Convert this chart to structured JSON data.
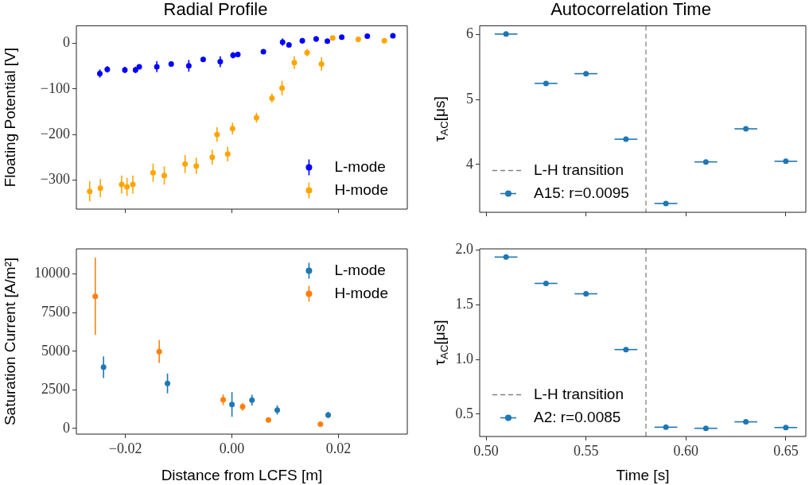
{
  "chart_data": [
    {
      "type": "scatter",
      "title": "Radial Profile",
      "ylabel": "Floating Potential [V]",
      "xlim": [
        -0.0292,
        0.0329
      ],
      "ylim": [
        -364,
        39
      ],
      "xticks": [
        -0.02,
        0,
        0.02
      ],
      "yticks": [
        {
          "value": -300,
          "label": "−300"
        },
        {
          "value": -200,
          "label": "−200"
        },
        {
          "value": -100,
          "label": "−100"
        },
        0
      ],
      "tick_labels": "y",
      "grid": false,
      "legend": "bottom right",
      "marker": "circle",
      "series": [
        {
          "name": "L-mode",
          "color": "#0000ff",
          "x": [
            -0.0248,
            -0.0234,
            -0.0201,
            -0.0181,
            -0.0174,
            -0.0141,
            -0.0114,
            -0.0081,
            -0.0054,
            -0.0022,
            0.0002,
            0.0011,
            0.0059,
            0.0095,
            0.0107,
            0.0132,
            0.0158,
            0.0179,
            0.0206,
            0.0254,
            0.0302
          ],
          "values": [
            -66,
            -57,
            -58,
            -58,
            -51,
            -51,
            -45,
            -49,
            -35,
            -40,
            -26,
            -24,
            -18,
            3,
            -3,
            6,
            10,
            5,
            14,
            16,
            17
          ],
          "errors": [
            9,
            7,
            7,
            7,
            5,
            12,
            5,
            13,
            5,
            12,
            7,
            4,
            4,
            8,
            4,
            6,
            6,
            5,
            4,
            4,
            4
          ]
        },
        {
          "name": "H-mode",
          "color": "#ffa500",
          "x": [
            -0.0267,
            -0.0247,
            -0.0207,
            -0.0197,
            -0.0186,
            -0.0148,
            -0.0127,
            -0.0088,
            -0.0067,
            -0.0037,
            -0.0028,
            -0.0008,
            0.0001,
            0.0046,
            0.0075,
            0.0094,
            0.0117,
            0.0141,
            0.0168,
            0.0189,
            0.0237,
            0.0286
          ],
          "values": [
            -325,
            -318,
            -310,
            -315,
            -310,
            -284,
            -290,
            -265,
            -269,
            -250,
            -200,
            -243,
            -187,
            -163,
            -120,
            -98,
            -42,
            -20,
            -45,
            12,
            9,
            6
          ],
          "errors": [
            22,
            20,
            20,
            20,
            20,
            20,
            20,
            20,
            18,
            16,
            16,
            16,
            13,
            11,
            10,
            16,
            14,
            8,
            15,
            null,
            null,
            null
          ]
        }
      ]
    },
    {
      "type": "scatter",
      "xlabel": "Distance from LCFS [m]",
      "ylabel": "Saturation Current [A/m²]",
      "xlim": [
        -0.0292,
        0.0329
      ],
      "ylim": [
        -361,
        11630
      ],
      "xticks": [
        {
          "value": -0.02,
          "label": "−0.02"
        },
        {
          "value": 0,
          "label": "0.00"
        },
        {
          "value": 0.02,
          "label": "0.02"
        }
      ],
      "yticks": [
        0,
        2500,
        5000,
        7500,
        10000
      ],
      "grid": false,
      "legend": "top right",
      "marker": "circle",
      "series": [
        {
          "name": "L-mode",
          "color": "#1f77b4",
          "x": [
            -0.0241,
            -0.0121,
            0,
            0.00375,
            0.0085,
            0.01805
          ],
          "values": [
            3970,
            2920,
            1560,
            1840,
            1200,
            880
          ],
          "errors": [
            700,
            640,
            800,
            350,
            300,
            200
          ]
        },
        {
          "name": "H-mode",
          "color": "#ff7f0e",
          "x": [
            -0.02565,
            -0.01365,
            -0.00165,
            0.002,
            0.00685,
            0.0166
          ],
          "values": [
            8560,
            4980,
            1860,
            1410,
            550,
            280
          ],
          "errors": [
            2500,
            740,
            350,
            250,
            null,
            null
          ]
        }
      ]
    },
    {
      "type": "scatter",
      "title": "Autocorrelation Time",
      "ylabel": "τ$_{AC}$[μs]",
      "xlim": [
        0.4968,
        0.66
      ],
      "ylim": [
        3.264,
        6.138
      ],
      "xticks": [
        0.5,
        0.55,
        0.6,
        0.65
      ],
      "yticks": [
        4,
        5,
        6
      ],
      "tick_labels": "y",
      "grid": false,
      "legend": "bottom left",
      "marker": "circle",
      "ref_lines": [
        {
          "axis": "x",
          "value": 0.58,
          "label": "L-H transition",
          "color": "#808080",
          "line_style": "dashed"
        }
      ],
      "series": [
        {
          "name": "A15: r=0.0095",
          "color": "#1f77b4",
          "x": [
            0.51,
            0.53,
            0.55,
            0.57,
            0.59,
            0.61,
            0.63,
            0.65
          ],
          "values": [
            6.01,
            5.25,
            5.4,
            4.39,
            3.4,
            4.04,
            4.55,
            4.05
          ],
          "xerrors": [
            0.0057,
            0.0057,
            0.0057,
            0.0057,
            0.0057,
            0.0057,
            0.0057,
            0.0057
          ]
        }
      ]
    },
    {
      "type": "scatter",
      "xlabel": "Time [s]",
      "ylabel": "τ$_{AC}$[μs]",
      "xlim": [
        0.4968,
        0.66
      ],
      "ylim": [
        0.296,
        2.012
      ],
      "xticks": [
        {
          "value": 0.5,
          "label": "0.50"
        },
        {
          "value": 0.55,
          "label": "0.55"
        },
        {
          "value": 0.6,
          "label": "0.60"
        },
        {
          "value": 0.65,
          "label": "0.65"
        }
      ],
      "yticks": [
        {
          "value": 0.5,
          "label": "0.5"
        },
        {
          "value": 1,
          "label": "1.0"
        },
        {
          "value": 1.5,
          "label": "1.5"
        },
        {
          "value": 2,
          "label": "2.0"
        }
      ],
      "grid": false,
      "legend": "bottom left",
      "marker": "circle",
      "ref_lines": [
        {
          "axis": "x",
          "value": 0.58,
          "label": "L-H transition",
          "color": "#808080",
          "line_style": "dashed"
        }
      ],
      "series": [
        {
          "name": "A2: r=0.0085",
          "color": "#1f77b4",
          "x": [
            0.51,
            0.53,
            0.55,
            0.57,
            0.59,
            0.61,
            0.63,
            0.65
          ],
          "values": [
            1.937,
            1.696,
            1.601,
            1.091,
            0.381,
            0.371,
            0.43,
            0.378
          ],
          "xerrors": [
            0.0057,
            0.0057,
            0.0057,
            0.0057,
            0.0057,
            0.0057,
            0.0057,
            0.0057
          ]
        }
      ]
    }
  ]
}
